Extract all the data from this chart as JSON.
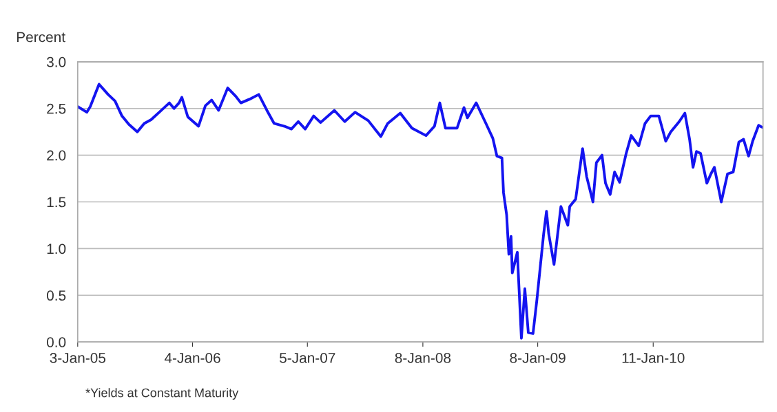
{
  "chart_data": {
    "type": "line",
    "ylabel": "Percent",
    "annotations": [
      "*Yields at Constant Maturity"
    ],
    "xlim": [
      "2005-01-03",
      "2010-12-27"
    ],
    "ylim": [
      0,
      3
    ],
    "xticks": [
      {
        "value": "2005-01-03",
        "label": "3-Jan-05"
      },
      {
        "value": "2006-01-04",
        "label": "4-Jan-06"
      },
      {
        "value": "2007-01-05",
        "label": "5-Jan-07"
      },
      {
        "value": "2008-01-08",
        "label": "8-Jan-08"
      },
      {
        "value": "2009-01-08",
        "label": "8-Jan-09"
      },
      {
        "value": "2010-01-11",
        "label": "11-Jan-10"
      }
    ],
    "yticks": [
      {
        "value": 0,
        "label": "0.0"
      },
      {
        "value": 0.5,
        "label": "0.5"
      },
      {
        "value": 1,
        "label": "1.0"
      },
      {
        "value": 1.5,
        "label": "1.5"
      },
      {
        "value": 2,
        "label": "2.0"
      },
      {
        "value": 2.5,
        "label": "2.5"
      },
      {
        "value": 3,
        "label": "3.0"
      }
    ],
    "grid": "y",
    "marker": "none",
    "line_style": "solid",
    "series": [
      {
        "color": "#1414f0",
        "x": [
          "2005-01-03",
          "2005-02-01",
          "2005-02-12",
          "2005-03-12",
          "2005-04-10",
          "2005-05-02",
          "2005-05-24",
          "2005-06-15",
          "2005-07-12",
          "2005-08-03",
          "2005-08-25",
          "2005-09-23",
          "2005-10-22",
          "2005-11-06",
          "2005-11-22",
          "2005-12-01",
          "2005-12-20",
          "2006-01-23",
          "2006-02-14",
          "2006-03-06",
          "2006-03-28",
          "2006-04-26",
          "2006-05-22",
          "2006-06-07",
          "2006-07-05",
          "2006-08-03",
          "2006-08-29",
          "2006-09-21",
          "2006-10-24",
          "2006-11-15",
          "2006-12-07",
          "2006-12-29",
          "2007-01-25",
          "2007-02-16",
          "2007-04-01",
          "2007-05-04",
          "2007-06-06",
          "2007-07-18",
          "2007-08-27",
          "2007-09-18",
          "2007-10-28",
          "2007-12-04",
          "2008-01-18",
          "2008-02-14",
          "2008-03-02",
          "2008-03-20",
          "2008-04-26",
          "2008-05-18",
          "2008-05-29",
          "2008-06-26",
          "2008-07-27",
          "2008-08-18",
          "2008-08-31",
          "2008-09-16",
          "2008-09-21",
          "2008-10-01",
          "2008-10-08",
          "2008-10-15",
          "2008-10-19",
          "2008-11-04",
          "2008-11-17",
          "2008-11-28",
          "2008-12-09",
          "2008-12-24",
          "2009-01-05",
          "2009-01-27",
          "2009-02-05",
          "2009-02-12",
          "2009-03-01",
          "2009-03-23",
          "2009-04-14",
          "2009-04-20",
          "2009-05-09",
          "2009-05-31",
          "2009-06-13",
          "2009-07-03",
          "2009-07-14",
          "2009-08-01",
          "2009-08-12",
          "2009-08-27",
          "2009-09-10",
          "2009-09-26",
          "2009-10-17",
          "2009-11-02",
          "2009-11-26",
          "2009-12-16",
          "2010-01-03",
          "2010-01-29",
          "2010-02-20",
          "2010-03-08",
          "2010-04-04",
          "2010-04-22",
          "2010-05-07",
          "2010-05-18",
          "2010-05-29",
          "2010-06-11",
          "2010-07-01",
          "2010-07-14",
          "2010-07-25",
          "2010-08-16",
          "2010-09-05",
          "2010-09-23",
          "2010-10-11",
          "2010-10-26",
          "2010-11-11",
          "2010-11-24",
          "2010-12-13",
          "2010-12-24"
        ],
        "values": [
          2.52,
          2.46,
          2.52,
          2.76,
          2.65,
          2.58,
          2.42,
          2.33,
          2.25,
          2.34,
          2.38,
          2.47,
          2.56,
          2.5,
          2.56,
          2.62,
          2.41,
          2.31,
          2.53,
          2.59,
          2.48,
          2.72,
          2.63,
          2.56,
          2.6,
          2.65,
          2.48,
          2.34,
          2.31,
          2.28,
          2.36,
          2.28,
          2.42,
          2.35,
          2.48,
          2.36,
          2.46,
          2.37,
          2.2,
          2.34,
          2.45,
          2.29,
          2.21,
          2.31,
          2.56,
          2.29,
          2.29,
          2.51,
          2.4,
          2.56,
          2.34,
          2.18,
          1.99,
          1.97,
          1.6,
          1.36,
          0.94,
          1.13,
          0.74,
          0.96,
          0.04,
          0.57,
          0.1,
          0.09,
          0.44,
          1.16,
          1.4,
          1.16,
          0.83,
          1.45,
          1.25,
          1.45,
          1.53,
          2.07,
          1.77,
          1.5,
          1.92,
          2.0,
          1.7,
          1.58,
          1.82,
          1.71,
          2.02,
          2.21,
          2.1,
          2.34,
          2.42,
          2.42,
          2.15,
          2.25,
          2.36,
          2.45,
          2.17,
          1.87,
          2.04,
          2.02,
          1.7,
          1.8,
          1.87,
          1.5,
          1.8,
          1.82,
          2.14,
          2.17,
          1.99,
          2.15,
          2.32,
          2.3
        ]
      }
    ]
  }
}
